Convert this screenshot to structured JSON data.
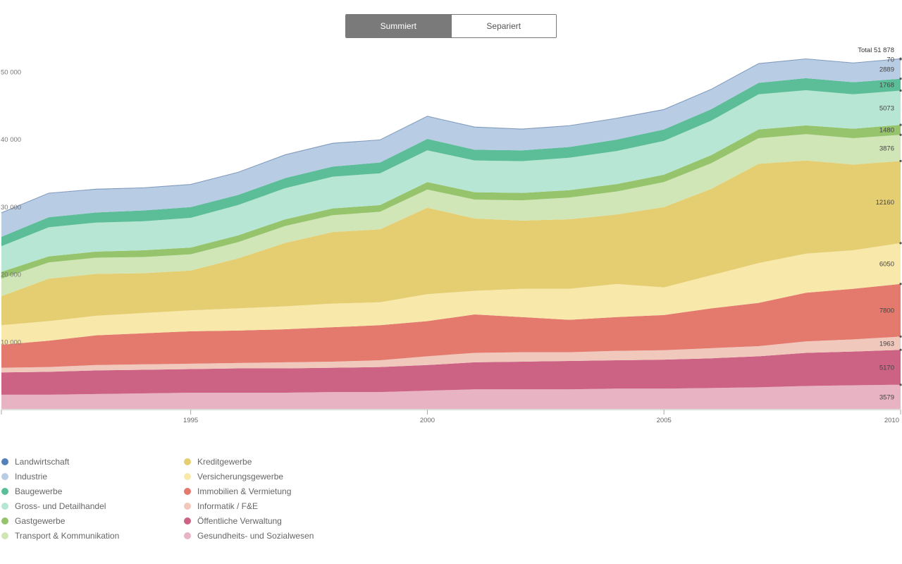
{
  "toggle": {
    "stacked_label": "Summiert",
    "separate_label": "Separiert"
  },
  "chart_data": {
    "type": "area",
    "stacked": true,
    "x": [
      1991,
      1992,
      1993,
      1994,
      1995,
      1996,
      1997,
      1998,
      1999,
      2000,
      2001,
      2002,
      2003,
      2004,
      2005,
      2006,
      2007,
      2008,
      2009,
      2010
    ],
    "ylim": [
      0,
      55000
    ],
    "yticks": [
      10000,
      20000,
      30000,
      40000,
      50000
    ],
    "ytick_labels": [
      "10 000",
      "20 000",
      "30 000",
      "40 000",
      "50 000"
    ],
    "xticks": [
      1995,
      2000,
      2005,
      2010
    ],
    "total_label": "Total 51 878",
    "series": [
      {
        "name": "Gesundheits- und Sozialwesen",
        "color": "#e8b4c4",
        "label": "3579",
        "values": [
          2100,
          2100,
          2200,
          2300,
          2400,
          2400,
          2400,
          2500,
          2500,
          2700,
          2900,
          2900,
          2900,
          3000,
          3000,
          3100,
          3200,
          3400,
          3500,
          3579
        ]
      },
      {
        "name": "Öffentliche Verwaltung",
        "color": "#cc6384",
        "label": "5170",
        "values": [
          3300,
          3400,
          3500,
          3500,
          3500,
          3600,
          3600,
          3600,
          3700,
          3800,
          4000,
          4100,
          4200,
          4200,
          4300,
          4400,
          4600,
          4900,
          5000,
          5170
        ]
      },
      {
        "name": "Informatik / F&E",
        "color": "#f0c8bc",
        "label": "1963",
        "values": [
          700,
          700,
          800,
          800,
          800,
          800,
          900,
          900,
          1000,
          1300,
          1400,
          1400,
          1300,
          1400,
          1400,
          1500,
          1500,
          1700,
          1800,
          1963
        ]
      },
      {
        "name": "Immobilien & Vermietung",
        "color": "#e47a6e",
        "label": "7800",
        "values": [
          3400,
          3900,
          4400,
          4600,
          4800,
          4800,
          4900,
          5100,
          5200,
          5200,
          5700,
          5200,
          4800,
          5000,
          5200,
          5900,
          6400,
          7200,
          7500,
          7800
        ]
      },
      {
        "name": "Versicherungsgewerbe",
        "color": "#f8e8aa",
        "label": "6050",
        "values": [
          2900,
          2900,
          2900,
          3000,
          3100,
          3300,
          3400,
          3500,
          3400,
          4000,
          3500,
          4200,
          4600,
          4900,
          4100,
          4900,
          5900,
          5800,
          5700,
          6050
        ]
      },
      {
        "name": "Kreditgewerbe",
        "color": "#e5ce72",
        "label": "12160",
        "values": [
          4300,
          6300,
          6200,
          5900,
          5900,
          7400,
          9400,
          10600,
          10800,
          12800,
          10700,
          10100,
          10300,
          10300,
          11900,
          12800,
          14700,
          13800,
          12700,
          12160
        ]
      },
      {
        "name": "Transport & Kommunikation",
        "color": "#d0e6b6",
        "label": "3876",
        "values": [
          2600,
          2400,
          2400,
          2400,
          2400,
          2400,
          2500,
          2500,
          2600,
          2700,
          2800,
          3000,
          3200,
          3400,
          3700,
          3800,
          3800,
          3900,
          3900,
          3876
        ]
      },
      {
        "name": "Gastgewerbe",
        "color": "#96c46c",
        "label": "1480",
        "values": [
          1000,
          900,
          900,
          1000,
          1000,
          1000,
          1000,
          1000,
          1000,
          1100,
          1100,
          1100,
          1100,
          1100,
          1100,
          1200,
          1300,
          1300,
          1400,
          1480
        ]
      },
      {
        "name": "Gross- und Detailhandel",
        "color": "#b8e6d4",
        "label": "5073",
        "values": [
          3800,
          4300,
          4300,
          4300,
          4400,
          4500,
          4600,
          4700,
          4700,
          4700,
          4700,
          4700,
          4800,
          4900,
          5000,
          5100,
          5200,
          5200,
          5100,
          5073
        ]
      },
      {
        "name": "Baugewerbe",
        "color": "#5cbe98",
        "label": "1768",
        "values": [
          1400,
          1500,
          1500,
          1600,
          1600,
          1500,
          1500,
          1500,
          1600,
          1700,
          1600,
          1600,
          1600,
          1700,
          1700,
          1700,
          1700,
          1800,
          1800,
          1768
        ]
      },
      {
        "name": "Industrie",
        "color": "#b8cce4",
        "label": "2889",
        "values": [
          3500,
          3500,
          3400,
          3300,
          3300,
          3300,
          3400,
          3400,
          3300,
          3300,
          3300,
          3100,
          3100,
          3100,
          2900,
          2900,
          2800,
          2800,
          2800,
          2889
        ]
      },
      {
        "name": "Landwirtschaft",
        "color": "#5580b8",
        "label": "70",
        "values": [
          70,
          70,
          70,
          70,
          70,
          70,
          70,
          70,
          70,
          70,
          70,
          70,
          70,
          70,
          70,
          70,
          70,
          70,
          70,
          70
        ]
      }
    ]
  },
  "legend": {
    "col1": [
      {
        "name": "Landwirtschaft",
        "color": "#5580b8"
      },
      {
        "name": "Industrie",
        "color": "#b8cce4"
      },
      {
        "name": "Baugewerbe",
        "color": "#5cbe98"
      },
      {
        "name": "Gross- und Detailhandel",
        "color": "#b8e6d4"
      },
      {
        "name": "Gastgewerbe",
        "color": "#96c46c"
      },
      {
        "name": "Transport & Kommunikation",
        "color": "#d0e6b6"
      }
    ],
    "col2": [
      {
        "name": "Kreditgewerbe",
        "color": "#e5ce72"
      },
      {
        "name": "Versicherungsgewerbe",
        "color": "#f8e8aa"
      },
      {
        "name": "Immobilien & Vermietung",
        "color": "#e47a6e"
      },
      {
        "name": "Informatik / F&E",
        "color": "#f0c8bc"
      },
      {
        "name": "Öffentliche Verwaltung",
        "color": "#cc6384"
      },
      {
        "name": "Gesundheits- und Sozialwesen",
        "color": "#e8b4c4"
      }
    ]
  }
}
